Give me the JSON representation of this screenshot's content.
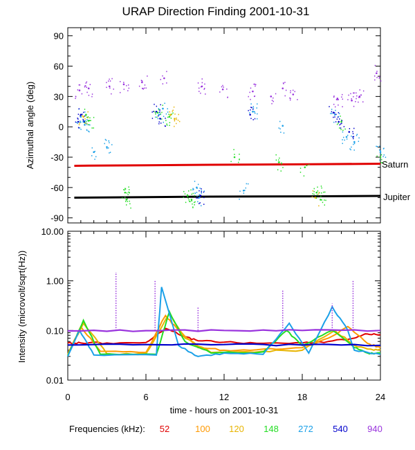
{
  "chart_data": [
    {
      "type": "scatter",
      "title": "URAP Direction Finding  2001-10-31",
      "ylabel": "Azimuthal angle (deg)",
      "xlim": [
        0,
        24
      ],
      "ylim": [
        -95,
        98
      ],
      "yticks": [
        90,
        60,
        30,
        0,
        -30,
        -60,
        -90
      ],
      "ytick_labels": [
        "90",
        "60",
        "30",
        "0",
        "-30",
        "-60",
        "-90"
      ],
      "annotations": [
        {
          "text": "Saturn",
          "x": 24,
          "y": -37
        },
        {
          "text": "Jupiter",
          "x": 24,
          "y": -67
        }
      ],
      "series": [
        {
          "name": "Saturn direction",
          "color": "#e00000",
          "x": [
            0.5,
            6,
            11,
            18.5,
            24
          ],
          "y": [
            -38.5,
            -38,
            -37.5,
            -37,
            -36.5
          ]
        },
        {
          "name": "Jupiter direction",
          "color": "#000000",
          "x": [
            0.5,
            6,
            11,
            18.5,
            24
          ],
          "y": [
            -70,
            -69.5,
            -69,
            -68.7,
            -68.3
          ]
        },
        {
          "name": "272 kHz",
          "color": "#1aa0e8",
          "x": [
            1.0,
            1.2,
            1.3,
            2.0,
            3.0,
            7.0,
            7.3,
            9.9,
            10.1,
            13.5,
            14.2,
            16.5,
            20.5,
            21.4,
            22.0,
            24.0
          ],
          "y": [
            10,
            5,
            2,
            -25,
            -20,
            12,
            18,
            -60,
            -70,
            -63,
            15,
            1,
            12,
            -10,
            -15,
            -25
          ]
        },
        {
          "name": "148 kHz",
          "color": "#22dd22",
          "x": [
            1.4,
            1.6,
            4.4,
            4.5,
            6.9,
            7.8,
            9.2,
            9.5,
            12.8,
            16.2,
            18.2,
            19.1,
            19.4,
            21.0,
            24.0
          ],
          "y": [
            12,
            6,
            -65,
            -72,
            14,
            10,
            -68,
            -72,
            -30,
            -35,
            -40,
            -65,
            -72,
            5,
            -30
          ]
        },
        {
          "name": "540 kHz",
          "color": "#0000cc",
          "x": [
            0.8,
            1.0,
            6.8,
            7.1,
            10.2,
            14.0,
            20.4,
            20.8,
            21.6
          ],
          "y": [
            5,
            12,
            15,
            8,
            -68,
            12,
            14,
            5,
            -5
          ]
        },
        {
          "name": "940 kHz",
          "color": "#9933dd",
          "x": [
            0.9,
            1.6,
            3.2,
            4.3,
            5.7,
            7.4,
            10.3,
            11.9,
            14.2,
            15.6,
            16.5,
            17.3,
            20.7,
            21.8,
            22.4,
            23.7
          ],
          "y": [
            36,
            38,
            40,
            42,
            44,
            48,
            40,
            37,
            35,
            30,
            38,
            32,
            28,
            26,
            30,
            53
          ]
        },
        {
          "name": "120 kHz",
          "color": "#e8b400",
          "x": [
            1.2,
            7.9,
            8.2,
            19.0
          ],
          "y": [
            10,
            12,
            8,
            -70
          ]
        }
      ]
    },
    {
      "type": "line",
      "ylabel": "Intensity (microvolt/sqrt(Hz))",
      "xlabel": "time - hours on 2001-10-31",
      "x_ticks": [
        0,
        6,
        12,
        18,
        24
      ],
      "x_tick_labels": [
        "0",
        "6",
        "12",
        "18",
        "24"
      ],
      "xlim": [
        0,
        24
      ],
      "yscale": "log",
      "ylim": [
        0.01,
        10
      ],
      "yticks": [
        10,
        1,
        0.1,
        0.01
      ],
      "ytick_labels": [
        "10.00",
        "1.00",
        "0.10",
        "0.01"
      ],
      "legend_label": "Frequencies (kHz):",
      "series": [
        {
          "name": "52",
          "color": "#e00000",
          "x": [
            0,
            1,
            3,
            6,
            7.5,
            9,
            10,
            12,
            15,
            18,
            20,
            22,
            23,
            24
          ],
          "y": [
            0.056,
            0.056,
            0.056,
            0.057,
            0.11,
            0.075,
            0.062,
            0.058,
            0.055,
            0.056,
            0.06,
            0.07,
            0.085,
            0.082
          ]
        },
        {
          "name": "100",
          "color": "#ff9900",
          "x": [
            0,
            1,
            2.5,
            6,
            7.5,
            8.5,
            10,
            12,
            15,
            18,
            20,
            21.5,
            23,
            24
          ],
          "y": [
            0.033,
            0.12,
            0.038,
            0.036,
            0.2,
            0.1,
            0.045,
            0.04,
            0.042,
            0.045,
            0.07,
            0.12,
            0.055,
            0.045
          ]
        },
        {
          "name": "120",
          "color": "#e8b400",
          "x": [
            0,
            1.2,
            3,
            6,
            7.8,
            9,
            11,
            15,
            18,
            20.5,
            22,
            23.5,
            24
          ],
          "y": [
            0.032,
            0.14,
            0.034,
            0.034,
            0.22,
            0.07,
            0.036,
            0.038,
            0.04,
            0.1,
            0.05,
            0.04,
            0.04
          ]
        },
        {
          "name": "148",
          "color": "#22dd22",
          "x": [
            0,
            1.2,
            2.5,
            6.8,
            7.8,
            9,
            11,
            15,
            16.8,
            18,
            20.3,
            22,
            23,
            24
          ],
          "y": [
            0.031,
            0.16,
            0.033,
            0.033,
            0.24,
            0.06,
            0.035,
            0.037,
            0.1,
            0.05,
            0.1,
            0.045,
            0.035,
            0.035
          ]
        },
        {
          "name": "272",
          "color": "#1aa0e8",
          "x": [
            0,
            0.9,
            2,
            6.8,
            7.2,
            8.5,
            10,
            12,
            15,
            17,
            18.5,
            20.3,
            21.5,
            22,
            24
          ],
          "y": [
            0.03,
            0.1,
            0.032,
            0.032,
            0.75,
            0.05,
            0.03,
            0.035,
            0.033,
            0.14,
            0.035,
            0.3,
            0.1,
            0.04,
            0.033
          ]
        },
        {
          "name": "540",
          "color": "#0000cc",
          "x": [
            0,
            6,
            12,
            18,
            24
          ],
          "y": [
            0.051,
            0.052,
            0.052,
            0.051,
            0.05
          ]
        },
        {
          "name": "940",
          "color": "#9933dd",
          "x": [
            0,
            6,
            12,
            18,
            24
          ],
          "y": [
            0.098,
            0.099,
            0.1,
            0.1,
            0.1
          ]
        }
      ],
      "bursts": [
        {
          "x": 3.7,
          "peak": 1.5,
          "color": "#9933dd"
        },
        {
          "x": 6.7,
          "peak": 1.0,
          "color": "#9933dd"
        },
        {
          "x": 10.0,
          "peak": 0.3,
          "color": "#9933dd"
        },
        {
          "x": 16.5,
          "peak": 0.65,
          "color": "#9933dd"
        },
        {
          "x": 20.3,
          "peak": 0.35,
          "color": "#9933dd"
        },
        {
          "x": 21.9,
          "peak": 1.0,
          "color": "#9933dd"
        }
      ]
    }
  ]
}
